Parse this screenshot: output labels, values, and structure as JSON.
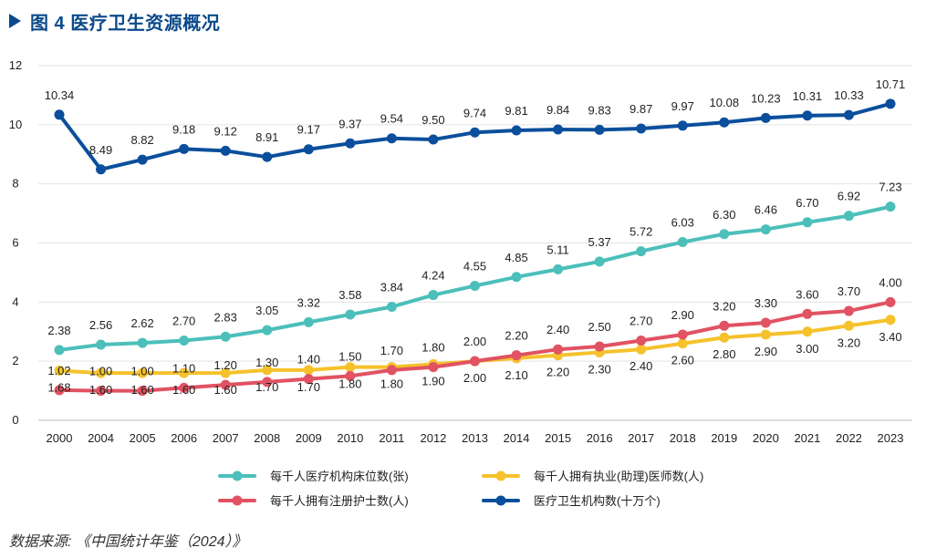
{
  "title": "图 4 医疗卫生资源概况",
  "source": "数据来源: 《中国统计年鉴（2024）》",
  "chart_data": {
    "type": "line",
    "title": "图 4 医疗卫生资源概况",
    "xlabel": "",
    "ylabel": "",
    "ylim": [
      0,
      12
    ],
    "yticks": [
      "0",
      "2",
      "4",
      "6",
      "8",
      "10",
      "12"
    ],
    "grid": true,
    "legend_position": "bottom",
    "categories": [
      "2000",
      "2004",
      "2005",
      "2006",
      "2007",
      "2008",
      "2009",
      "2010",
      "2011",
      "2012",
      "2013",
      "2014",
      "2015",
      "2016",
      "2017",
      "2018",
      "2019",
      "2020",
      "2021",
      "2022",
      "2023"
    ],
    "series": [
      {
        "name": "医疗卫生机构数(十万个)",
        "color": "#0b4f9c",
        "values": [
          10.34,
          8.49,
          8.82,
          9.18,
          9.12,
          8.91,
          9.17,
          9.37,
          9.54,
          9.5,
          9.74,
          9.81,
          9.84,
          9.83,
          9.87,
          9.97,
          10.08,
          10.23,
          10.31,
          10.33,
          10.71
        ],
        "labels": [
          "10.34",
          "8.49",
          "8.82",
          "9.18",
          "9.12",
          "8.91",
          "9.17",
          "9.37",
          "9.54",
          "9.50",
          "9.74",
          "9.81",
          "9.84",
          "9.83",
          "9.87",
          "9.97",
          "10.08",
          "10.23",
          "10.31",
          "10.33",
          "10.71"
        ],
        "label_pos": "above"
      },
      {
        "name": "每千人医疗机构床位数(张)",
        "color": "#4cbfba",
        "values": [
          2.38,
          2.56,
          2.62,
          2.7,
          2.83,
          3.05,
          3.32,
          3.58,
          3.84,
          4.24,
          4.55,
          4.85,
          5.11,
          5.37,
          5.72,
          6.03,
          6.3,
          6.46,
          6.7,
          6.92,
          7.23
        ],
        "labels": [
          "2.38",
          "2.56",
          "2.62",
          "2.70",
          "2.83",
          "3.05",
          "3.32",
          "3.58",
          "3.84",
          "4.24",
          "4.55",
          "4.85",
          "5.11",
          "5.37",
          "5.72",
          "6.03",
          "6.30",
          "6.46",
          "6.70",
          "6.92",
          "7.23"
        ],
        "label_pos": "above"
      },
      {
        "name": "每千人拥有执业(助理)医师数(人)",
        "color": "#f5c22b",
        "values": [
          1.68,
          1.6,
          1.6,
          1.6,
          1.6,
          1.7,
          1.7,
          1.8,
          1.8,
          1.9,
          2.0,
          2.1,
          2.2,
          2.3,
          2.4,
          2.6,
          2.8,
          2.9,
          3.0,
          3.2,
          3.4
        ],
        "labels": [
          "1.68",
          "1.60",
          "1.60",
          "1.60",
          "1.60",
          "1.70",
          "1.70",
          "1.80",
          "1.80",
          "1.90",
          "2.00",
          "2.10",
          "2.20",
          "2.30",
          "2.40",
          "2.60",
          "2.80",
          "2.90",
          "3.00",
          "3.20",
          "3.40"
        ],
        "label_pos": "below"
      },
      {
        "name": "每千人拥有注册护士数(人)",
        "color": "#e15262",
        "values": [
          1.02,
          1.0,
          1.0,
          1.1,
          1.2,
          1.3,
          1.4,
          1.5,
          1.7,
          1.8,
          2.0,
          2.2,
          2.4,
          2.5,
          2.7,
          2.9,
          3.2,
          3.3,
          3.6,
          3.7,
          4.0
        ],
        "labels": [
          "1.02",
          "1.00",
          "1.00",
          "1.10",
          "1.20",
          "1.30",
          "1.40",
          "1.50",
          "1.70",
          "1.80",
          "2.00",
          "2.20",
          "2.40",
          "2.50",
          "2.70",
          "2.90",
          "3.20",
          "3.30",
          "3.60",
          "3.70",
          "4.00"
        ],
        "label_pos": "above"
      }
    ],
    "legend": [
      {
        "name": "每千人医疗机构床位数(张)",
        "color": "#4cbfba"
      },
      {
        "name": "每千人拥有执业(助理)医师数(人)",
        "color": "#f5c22b"
      },
      {
        "name": "每千人拥有注册护士数(人)",
        "color": "#e15262"
      },
      {
        "name": "医疗卫生机构数(十万个)",
        "color": "#0b4f9c"
      }
    ]
  }
}
